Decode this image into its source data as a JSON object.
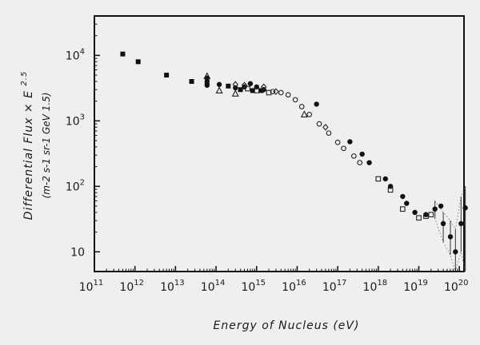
{
  "chart_data": {
    "type": "scatter",
    "title": "",
    "xlabel": "Energy of Nucleus (eV)",
    "ylabel": "Differential Flux × E",
    "ylabel_exp": "2.5",
    "ylabel_units": "(m",
    "ylabel_units_full": "(m-2 s-1 sr-1 GeV 1.5)",
    "x_scale": "log",
    "y_scale": "log",
    "xlim": [
      100000000000.0,
      1.3e+20
    ],
    "ylim": [
      5,
      40000
    ],
    "grid": false,
    "x_ticks": [
      {
        "base": "10",
        "exp": "11",
        "value": 100000000000.0
      },
      {
        "base": "10",
        "exp": "12",
        "value": 1000000000000.0
      },
      {
        "base": "10",
        "exp": "13",
        "value": 10000000000000.0
      },
      {
        "base": "10",
        "exp": "14",
        "value": 100000000000000.0
      },
      {
        "base": "10",
        "exp": "15",
        "value": 1000000000000000.0
      },
      {
        "base": "10",
        "exp": "16",
        "value": 1e+16
      },
      {
        "base": "10",
        "exp": "17",
        "value": 1e+17
      },
      {
        "base": "10",
        "exp": "18",
        "value": 1e+18
      },
      {
        "base": "10",
        "exp": "19",
        "value": 1e+19
      },
      {
        "base": "10",
        "exp": "20",
        "value": 1e+20
      }
    ],
    "y_ticks": [
      {
        "base": "10",
        "exp": "4",
        "value": 10000
      },
      {
        "base": "10",
        "exp": "3",
        "value": 1000
      },
      {
        "base": "10",
        "exp": "2",
        "value": 100
      },
      {
        "base": "10",
        "exp": "",
        "value": 10
      }
    ],
    "series": [
      {
        "marker": "filled-square",
        "points": [
          [
            500000000000.0,
            10500
          ],
          [
            1200000000000.0,
            8000
          ],
          [
            6000000000000.0,
            5000
          ],
          [
            25000000000000.0,
            4000
          ],
          [
            60000000000000.0,
            3900
          ],
          [
            200000000000000.0,
            3400
          ],
          [
            400000000000000.0,
            3000
          ],
          [
            800000000000000.0,
            2900
          ],
          [
            1300000000000000.0,
            2900
          ]
        ]
      },
      {
        "marker": "filled-circle",
        "points": [
          [
            60000000000000.0,
            4500
          ],
          [
            60000000000000.0,
            3500
          ],
          [
            120000000000000.0,
            3600
          ],
          [
            300000000000000.0,
            3200
          ],
          [
            500000000000000.0,
            3300
          ],
          [
            700000000000000.0,
            3700
          ],
          [
            1000000000000000.0,
            3300
          ],
          [
            1500000000000000.0,
            3000
          ],
          [
            3e+16,
            1800
          ],
          [
            2e+17,
            480
          ],
          [
            4e+17,
            310
          ],
          [
            6e+17,
            230
          ],
          [
            1.5e+18,
            130
          ],
          [
            2e+18,
            100
          ],
          [
            4e+18,
            70
          ],
          [
            5e+18,
            55
          ],
          [
            8e+18,
            40
          ],
          [
            1.5e+19,
            37
          ],
          [
            2.5e+19,
            45
          ],
          [
            3.5e+19,
            50
          ],
          [
            4e+19,
            27
          ],
          [
            6e+19,
            17
          ],
          [
            8e+19,
            10
          ],
          [
            1.1e+20,
            27
          ],
          [
            1.4e+20,
            47
          ]
        ]
      },
      {
        "marker": "open-circle",
        "points": [
          [
            2500000000000000.0,
            2800
          ],
          [
            4000000000000000.0,
            2700
          ],
          [
            6000000000000000.0,
            2500
          ],
          [
            9000000000000000.0,
            2100
          ],
          [
            1.3e+16,
            1650
          ],
          [
            2e+16,
            1250
          ],
          [
            3.5e+16,
            900
          ],
          [
            6e+16,
            650
          ],
          [
            1e+17,
            470
          ],
          [
            1.4e+17,
            380
          ],
          [
            2.5e+17,
            290
          ],
          [
            3.5e+17,
            230
          ]
        ]
      },
      {
        "marker": "open-triangle",
        "points": [
          [
            60000000000000.0,
            4800
          ],
          [
            120000000000000.0,
            2900
          ],
          [
            300000000000000.0,
            2600
          ],
          [
            1.5e+16,
            1250
          ]
        ]
      },
      {
        "marker": "open-square",
        "points": [
          [
            600000000000000.0,
            3100
          ],
          [
            1000000000000000.0,
            2900
          ],
          [
            2000000000000000.0,
            2700
          ],
          [
            1e+18,
            130
          ],
          [
            2e+18,
            88
          ],
          [
            4e+18,
            45
          ],
          [
            1e+19,
            33
          ],
          [
            1.5e+19,
            35
          ],
          [
            2e+19,
            37
          ]
        ]
      },
      {
        "marker": "diamond",
        "points": [
          [
            300000000000000.0,
            3600
          ],
          [
            500000000000000.0,
            3500
          ],
          [
            1500000000000000.0,
            3300
          ],
          [
            3000000000000000.0,
            2800
          ],
          [
            5e+16,
            800
          ]
        ]
      }
    ],
    "error_bars": [
      {
        "x": 2.5e+19,
        "low": 32,
        "high": 60
      },
      {
        "x": 4e+19,
        "low": 14,
        "high": 40
      },
      {
        "x": 6e+19,
        "low": 9,
        "high": 30
      },
      {
        "x": 8e+19,
        "low": 5,
        "high": 22
      },
      {
        "x": 1.1e+20,
        "low": 10,
        "high": 70
      },
      {
        "x": 1.4e+20,
        "low": 5,
        "high": 100
      }
    ]
  }
}
